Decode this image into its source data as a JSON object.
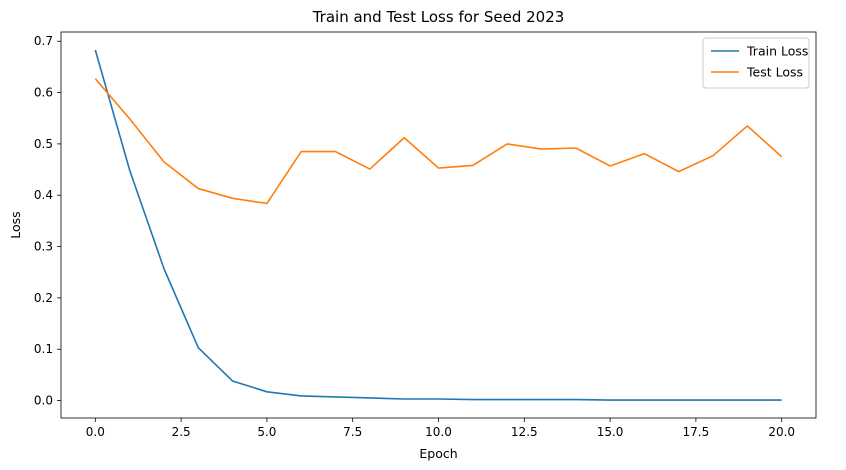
{
  "chart_data": {
    "type": "line",
    "title": "Train and Test Loss for Seed 2023",
    "xlabel": "Epoch",
    "ylabel": "Loss",
    "xlim": [
      -1,
      21
    ],
    "ylim": [
      -0.034,
      0.718
    ],
    "xticks": [
      0,
      2.5,
      5,
      7.5,
      10,
      12.5,
      15,
      17.5,
      20
    ],
    "xtick_labels": [
      "0.0",
      "2.5",
      "5.0",
      "7.5",
      "10.0",
      "12.5",
      "15.0",
      "17.5",
      "20.0"
    ],
    "yticks": [
      0,
      0.1,
      0.2,
      0.3,
      0.4,
      0.5,
      0.6,
      0.7
    ],
    "ytick_labels": [
      "0.0",
      "0.1",
      "0.2",
      "0.3",
      "0.4",
      "0.5",
      "0.6",
      "0.7"
    ],
    "grid": false,
    "legend_position": "top-right",
    "x": [
      0,
      1,
      2,
      3,
      4,
      5,
      6,
      7,
      8,
      9,
      10,
      11,
      12,
      13,
      14,
      15,
      16,
      17,
      18,
      19,
      20
    ],
    "series": [
      {
        "name": "Train Loss",
        "color": "#1f77b4",
        "values": [
          0.683,
          0.449,
          0.257,
          0.103,
          0.038,
          0.017,
          0.009,
          0.007,
          0.005,
          0.003,
          0.003,
          0.002,
          0.002,
          0.002,
          0.002,
          0.001,
          0.001,
          0.001,
          0.001,
          0.001,
          0.001
        ]
      },
      {
        "name": "Test Loss",
        "color": "#ff7f0e",
        "values": [
          0.627,
          0.549,
          0.465,
          0.413,
          0.394,
          0.384,
          0.485,
          0.485,
          0.451,
          0.512,
          0.453,
          0.458,
          0.5,
          0.49,
          0.492,
          0.457,
          0.481,
          0.446,
          0.477,
          0.535,
          0.475
        ]
      }
    ]
  }
}
